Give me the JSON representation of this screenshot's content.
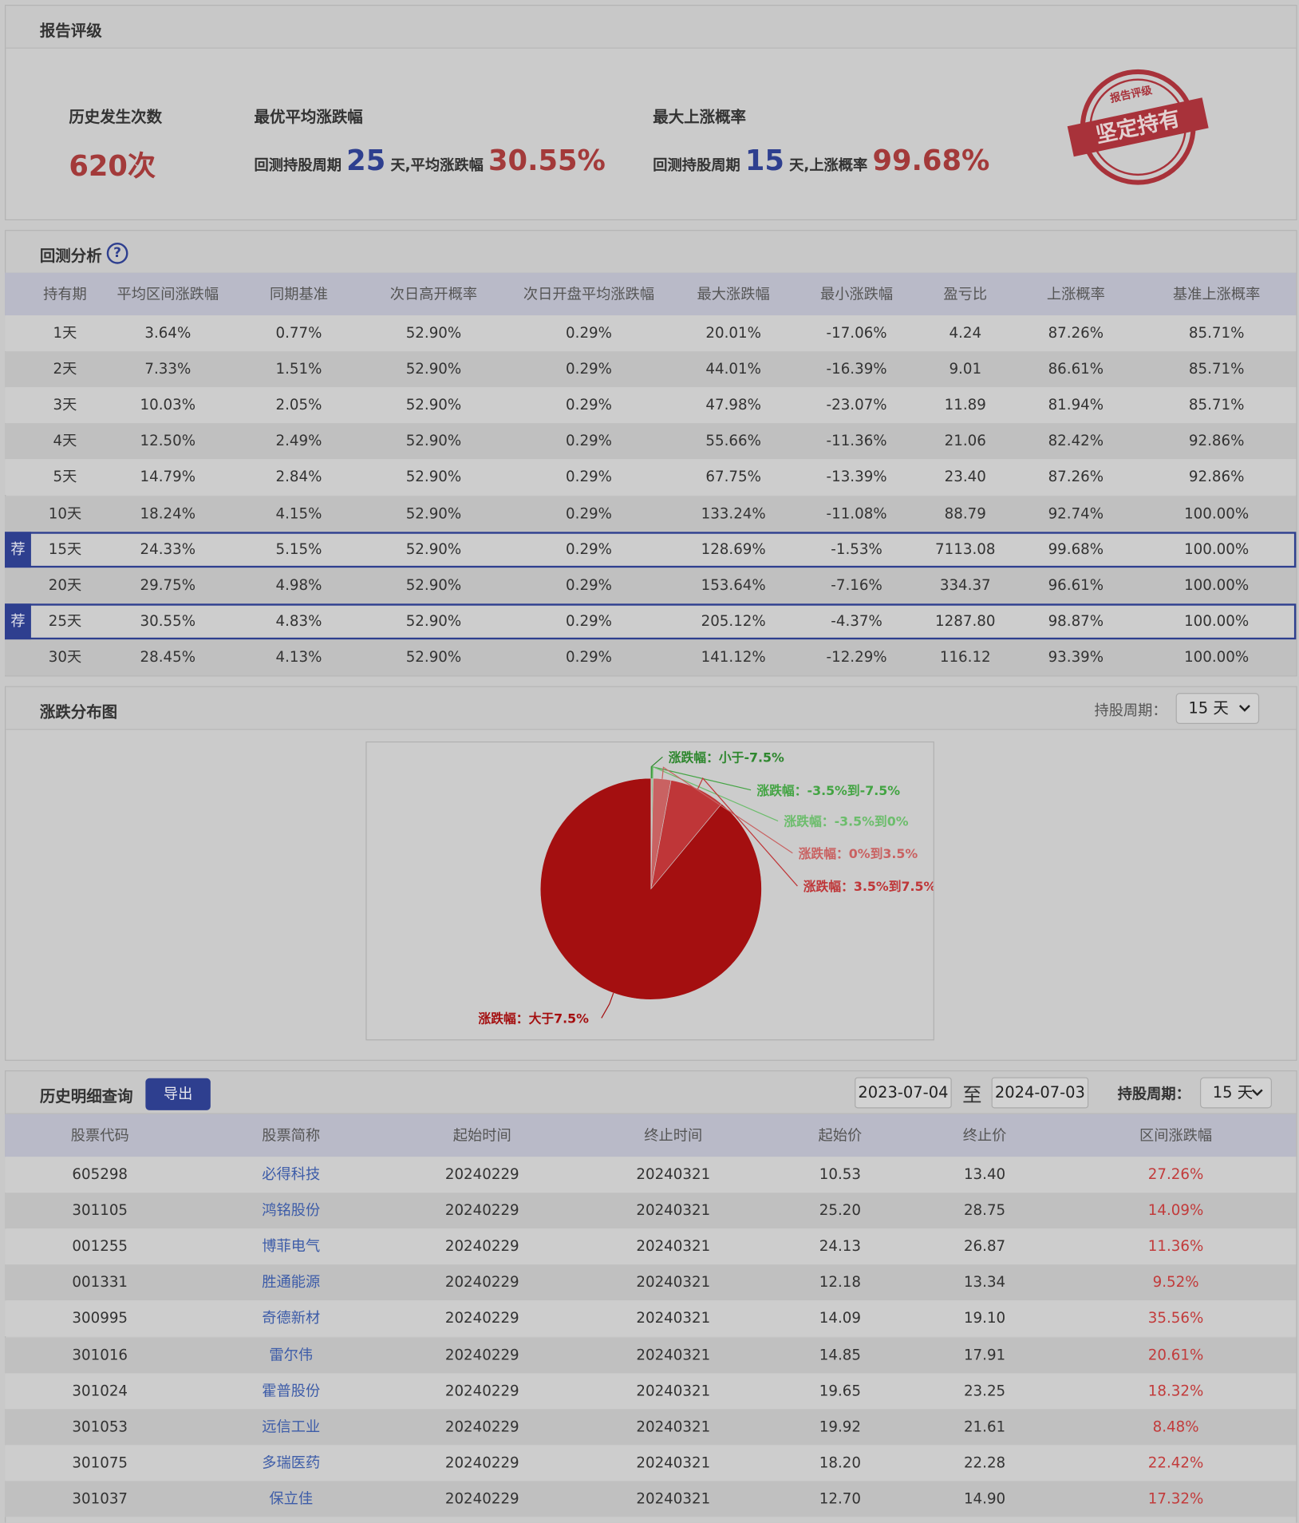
{
  "rating": {
    "title": "报告评级",
    "count_label": "历史发生次数",
    "count": "620次",
    "best_avg": {
      "label": "最优平均涨跌幅",
      "prefix": "回测持股周期",
      "days": "25",
      "mid": "天,平均涨跌幅",
      "value": "30.55%"
    },
    "max_prob": {
      "label": "最大上涨概率",
      "prefix": "回测持股周期",
      "days": "15",
      "mid": "天,上涨概率",
      "value": "99.68%"
    },
    "stamp": {
      "top": "报告评级",
      "main": "坚定持有"
    }
  },
  "backtest": {
    "title": "回测分析",
    "help": "?",
    "columns": [
      "持有期",
      "平均区间涨跌幅",
      "同期基准",
      "次日高开概率",
      "次日开盘平均涨跌幅",
      "最大涨跌幅",
      "最小涨跌幅",
      "盈亏比",
      "上涨概率",
      "基准上涨概率"
    ],
    "rows": [
      [
        "1天",
        "3.64%",
        "0.77%",
        "52.90%",
        "0.29%",
        "20.01%",
        "-17.06%",
        "4.24",
        "87.26%",
        "85.71%"
      ],
      [
        "2天",
        "7.33%",
        "1.51%",
        "52.90%",
        "0.29%",
        "44.01%",
        "-16.39%",
        "9.01",
        "86.61%",
        "85.71%"
      ],
      [
        "3天",
        "10.03%",
        "2.05%",
        "52.90%",
        "0.29%",
        "47.98%",
        "-23.07%",
        "11.89",
        "81.94%",
        "85.71%"
      ],
      [
        "4天",
        "12.50%",
        "2.49%",
        "52.90%",
        "0.29%",
        "55.66%",
        "-11.36%",
        "21.06",
        "82.42%",
        "92.86%"
      ],
      [
        "5天",
        "14.79%",
        "2.84%",
        "52.90%",
        "0.29%",
        "67.75%",
        "-13.39%",
        "23.40",
        "87.26%",
        "92.86%"
      ],
      [
        "10天",
        "18.24%",
        "4.15%",
        "52.90%",
        "0.29%",
        "133.24%",
        "-11.08%",
        "88.79",
        "92.74%",
        "100.00%"
      ],
      [
        "15天",
        "24.33%",
        "5.15%",
        "52.90%",
        "0.29%",
        "128.69%",
        "-1.53%",
        "7113.08",
        "99.68%",
        "100.00%"
      ],
      [
        "20天",
        "29.75%",
        "4.98%",
        "52.90%",
        "0.29%",
        "153.64%",
        "-7.16%",
        "334.37",
        "96.61%",
        "100.00%"
      ],
      [
        "25天",
        "30.55%",
        "4.83%",
        "52.90%",
        "0.29%",
        "205.12%",
        "-4.37%",
        "1287.80",
        "98.87%",
        "100.00%"
      ],
      [
        "30天",
        "28.45%",
        "4.13%",
        "52.90%",
        "0.29%",
        "141.12%",
        "-12.29%",
        "116.12",
        "93.39%",
        "100.00%"
      ]
    ],
    "recommended": {
      "label": "荐",
      "rows": [
        "15天",
        "25天"
      ]
    }
  },
  "distribution": {
    "title": "涨跌分布图",
    "period_label": "持股周期：",
    "period": "15 天"
  },
  "chart_data": {
    "type": "pie",
    "categories": [
      "涨跌幅：小于-7.5%",
      "涨跌幅：-3.5%到-7.5%",
      "涨跌幅：-3.5%到0%",
      "涨跌幅：0%到3.5%",
      "涨跌幅：3.5%到7.5%",
      "涨跌幅：大于7.5%"
    ],
    "values": [
      0.1,
      0.06,
      0.16,
      2.6,
      8.1,
      88.98
    ],
    "colors": [
      "#2e872e",
      "#43a443",
      "#6cbd6c",
      "#c96262",
      "#bf3638",
      "#a40f10"
    ]
  },
  "history": {
    "title": "历史明细查询",
    "export": "导出",
    "start": "2023-07-04",
    "sep": "至",
    "end": "2024-07-03",
    "period_label": "持股周期：",
    "period": "15 天",
    "columns": [
      "股票代码",
      "股票简称",
      "起始时间",
      "终止时间",
      "起始价",
      "终止价",
      "区间涨跌幅"
    ],
    "rows": [
      [
        "605298",
        "必得科技",
        "20240229",
        "20240321",
        "10.53",
        "13.40",
        "27.26%"
      ],
      [
        "301105",
        "鸿铭股份",
        "20240229",
        "20240321",
        "25.20",
        "28.75",
        "14.09%"
      ],
      [
        "001255",
        "博菲电气",
        "20240229",
        "20240321",
        "24.13",
        "26.87",
        "11.36%"
      ],
      [
        "001331",
        "胜通能源",
        "20240229",
        "20240321",
        "12.18",
        "13.34",
        "9.52%"
      ],
      [
        "300995",
        "奇德新材",
        "20240229",
        "20240321",
        "14.09",
        "19.10",
        "35.56%"
      ],
      [
        "301016",
        "雷尔伟",
        "20240229",
        "20240321",
        "14.85",
        "17.91",
        "20.61%"
      ],
      [
        "301024",
        "霍普股份",
        "20240229",
        "20240321",
        "19.65",
        "23.25",
        "18.32%"
      ],
      [
        "301053",
        "远信工业",
        "20240229",
        "20240321",
        "19.92",
        "21.61",
        "8.48%"
      ],
      [
        "301075",
        "多瑞医药",
        "20240229",
        "20240321",
        "18.20",
        "22.28",
        "22.42%"
      ],
      [
        "301037",
        "保立佳",
        "20240229",
        "20240321",
        "12.70",
        "14.90",
        "17.32%"
      ]
    ]
  }
}
